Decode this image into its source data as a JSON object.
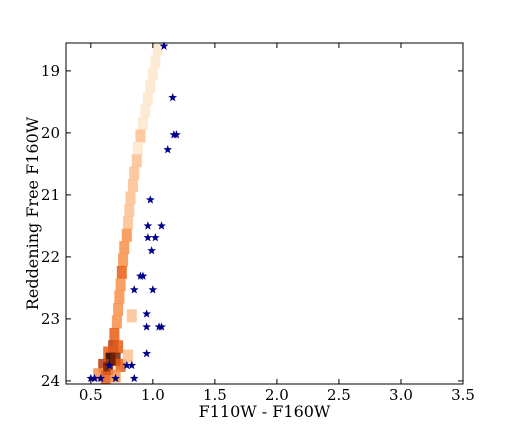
{
  "chart_data": {
    "type": "scatter",
    "title": "",
    "xlabel": "F110W - F160W",
    "ylabel": "Reddening Free F160W",
    "xlim": [
      0.3,
      3.5
    ],
    "ylim": [
      24.05,
      18.55
    ],
    "y_inverted": true,
    "grid": false,
    "legend": "none",
    "x_ticks": [
      0.5,
      1.0,
      1.5,
      2.0,
      2.5,
      3.0,
      3.5
    ],
    "x_tick_labels": [
      "0.5",
      "1.0",
      "1.5",
      "2.0",
      "2.5",
      "3.0",
      "3.5"
    ],
    "y_ticks": [
      19,
      20,
      21,
      22,
      23,
      24
    ],
    "y_tick_labels": [
      "19",
      "20",
      "21",
      "22",
      "23",
      "24"
    ],
    "density": {
      "description_color_scale": "white-orange-red-black",
      "colors": [
        "#fde6cc",
        "#fcc08f",
        "#f89149",
        "#e85c14",
        "#b8380a",
        "#7a1f05",
        "#2a0800"
      ],
      "cells": [
        {
          "x": 1.04,
          "y": 18.65,
          "level": 0
        },
        {
          "x": 1.02,
          "y": 18.85,
          "level": 0
        },
        {
          "x": 1.0,
          "y": 19.05,
          "level": 0
        },
        {
          "x": 0.98,
          "y": 19.25,
          "level": 0
        },
        {
          "x": 0.96,
          "y": 19.45,
          "level": 0
        },
        {
          "x": 0.94,
          "y": 19.65,
          "level": 0
        },
        {
          "x": 0.92,
          "y": 19.85,
          "level": 0
        },
        {
          "x": 0.9,
          "y": 20.05,
          "level": 1
        },
        {
          "x": 0.88,
          "y": 20.25,
          "level": 0
        },
        {
          "x": 0.87,
          "y": 20.45,
          "level": 1
        },
        {
          "x": 0.85,
          "y": 20.65,
          "level": 1
        },
        {
          "x": 0.84,
          "y": 20.85,
          "level": 1
        },
        {
          "x": 0.82,
          "y": 21.05,
          "level": 1
        },
        {
          "x": 0.81,
          "y": 21.25,
          "level": 1
        },
        {
          "x": 0.8,
          "y": 21.45,
          "level": 1
        },
        {
          "x": 0.79,
          "y": 21.65,
          "level": 2
        },
        {
          "x": 0.77,
          "y": 21.85,
          "level": 2
        },
        {
          "x": 0.76,
          "y": 22.05,
          "level": 2
        },
        {
          "x": 0.75,
          "y": 22.25,
          "level": 3
        },
        {
          "x": 0.74,
          "y": 22.45,
          "level": 2
        },
        {
          "x": 0.73,
          "y": 22.65,
          "level": 2
        },
        {
          "x": 0.72,
          "y": 22.85,
          "level": 2
        },
        {
          "x": 0.71,
          "y": 23.05,
          "level": 2
        },
        {
          "x": 0.69,
          "y": 23.25,
          "level": 3
        },
        {
          "x": 0.68,
          "y": 23.45,
          "level": 4
        },
        {
          "x": 0.72,
          "y": 23.45,
          "level": 3
        },
        {
          "x": 0.64,
          "y": 23.55,
          "level": 3
        },
        {
          "x": 0.66,
          "y": 23.65,
          "level": 6
        },
        {
          "x": 0.7,
          "y": 23.65,
          "level": 5
        },
        {
          "x": 0.6,
          "y": 23.75,
          "level": 4
        },
        {
          "x": 0.64,
          "y": 23.8,
          "level": 5
        },
        {
          "x": 0.74,
          "y": 23.75,
          "level": 3
        },
        {
          "x": 0.56,
          "y": 23.9,
          "level": 2
        },
        {
          "x": 0.62,
          "y": 23.95,
          "level": 3
        },
        {
          "x": 0.7,
          "y": 23.92,
          "level": 2
        },
        {
          "x": 0.8,
          "y": 23.6,
          "level": 1
        },
        {
          "x": 0.83,
          "y": 22.95,
          "level": 1
        }
      ]
    },
    "series": [
      {
        "marker": "star",
        "color": "#00008b",
        "points": [
          {
            "x": 1.09,
            "y": 18.6
          },
          {
            "x": 1.16,
            "y": 19.43
          },
          {
            "x": 1.17,
            "y": 20.03
          },
          {
            "x": 1.19,
            "y": 20.03
          },
          {
            "x": 1.12,
            "y": 20.27
          },
          {
            "x": 0.98,
            "y": 21.08
          },
          {
            "x": 0.96,
            "y": 21.5
          },
          {
            "x": 1.07,
            "y": 21.5
          },
          {
            "x": 0.96,
            "y": 21.69
          },
          {
            "x": 1.02,
            "y": 21.69
          },
          {
            "x": 0.99,
            "y": 21.9
          },
          {
            "x": 0.9,
            "y": 22.31
          },
          {
            "x": 0.92,
            "y": 22.31
          },
          {
            "x": 0.85,
            "y": 22.53
          },
          {
            "x": 1.0,
            "y": 22.53
          },
          {
            "x": 0.95,
            "y": 22.92
          },
          {
            "x": 0.95,
            "y": 23.13
          },
          {
            "x": 1.05,
            "y": 23.13
          },
          {
            "x": 1.07,
            "y": 23.13
          },
          {
            "x": 0.95,
            "y": 23.56
          },
          {
            "x": 0.65,
            "y": 23.75
          },
          {
            "x": 0.79,
            "y": 23.75
          },
          {
            "x": 0.83,
            "y": 23.75
          },
          {
            "x": 0.5,
            "y": 23.96
          },
          {
            "x": 0.53,
            "y": 23.96
          },
          {
            "x": 0.58,
            "y": 23.96
          },
          {
            "x": 0.7,
            "y": 23.96
          },
          {
            "x": 0.85,
            "y": 23.96
          }
        ]
      }
    ]
  }
}
